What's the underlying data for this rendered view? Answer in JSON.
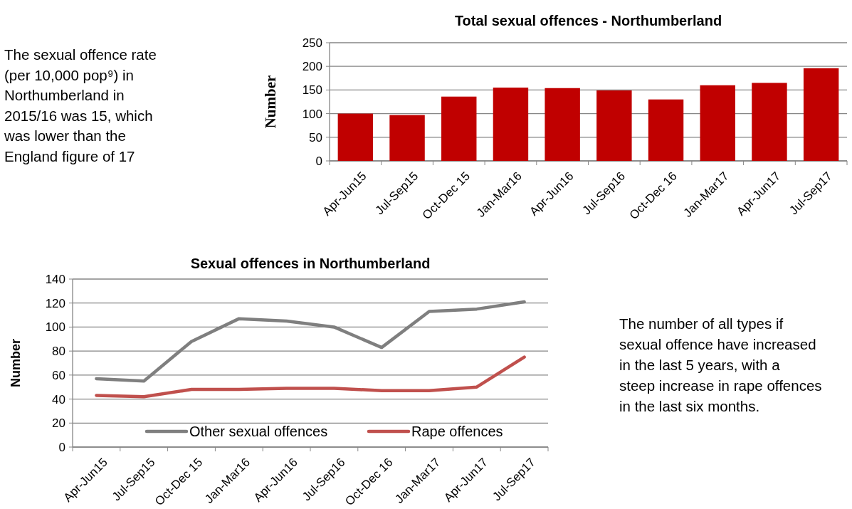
{
  "chart_data": [
    {
      "type": "bar",
      "title": "Total sexual offences - Northumberland",
      "ylabel": "Number",
      "categories": [
        "Apr-Jun15",
        "Jul-Sep15",
        "Oct-Dec 15",
        "Jan-Mar16",
        "Apr-Jun16",
        "Jul-Sep16",
        "Oct-Dec 16",
        "Jan-Mar17",
        "Apr-Jun17",
        "Jul-Sep17"
      ],
      "values": [
        100,
        97,
        136,
        155,
        154,
        149,
        130,
        160,
        165,
        196
      ],
      "color": "#c00000",
      "ylim": [
        0,
        250
      ],
      "yticks": [
        0,
        50,
        100,
        150,
        200,
        250
      ],
      "grid": "y",
      "legend": false,
      "annotations": [
        "The sexual offence rate (per 10,000 pop⁹) in Northumberland in 2015/16 was 15, which was lower than the England figure of 17"
      ]
    },
    {
      "type": "line",
      "title": "Sexual offences in Northumberland",
      "ylabel": "Number",
      "categories": [
        "Apr-Jun15",
        "Jul-Sep15",
        "Oct-Dec 15",
        "Jan-Mar16",
        "Apr-Jun16",
        "Jul-Sep16",
        "Oct-Dec 16",
        "Jan-Mar17",
        "Apr-Jun17",
        "Jul-Sep17"
      ],
      "series": [
        {
          "name": "Other sexual offences",
          "color": "#7f7f7f",
          "values": [
            57,
            55,
            88,
            107,
            105,
            100,
            83,
            113,
            115,
            121
          ]
        },
        {
          "name": "Rape offences",
          "color": "#c0504d",
          "values": [
            43,
            42,
            48,
            48,
            49,
            49,
            47,
            47,
            50,
            75
          ]
        }
      ],
      "ylim": [
        0,
        140
      ],
      "yticks": [
        0,
        20,
        40,
        60,
        80,
        100,
        120,
        140
      ],
      "grid": "y",
      "legend": "bottom",
      "marker": "none",
      "line_style": "solid",
      "annotations": [
        "The number of all types if sexual offence have increased in the last 5 years, with a steep increase in rape offences in the last six months."
      ]
    }
  ]
}
